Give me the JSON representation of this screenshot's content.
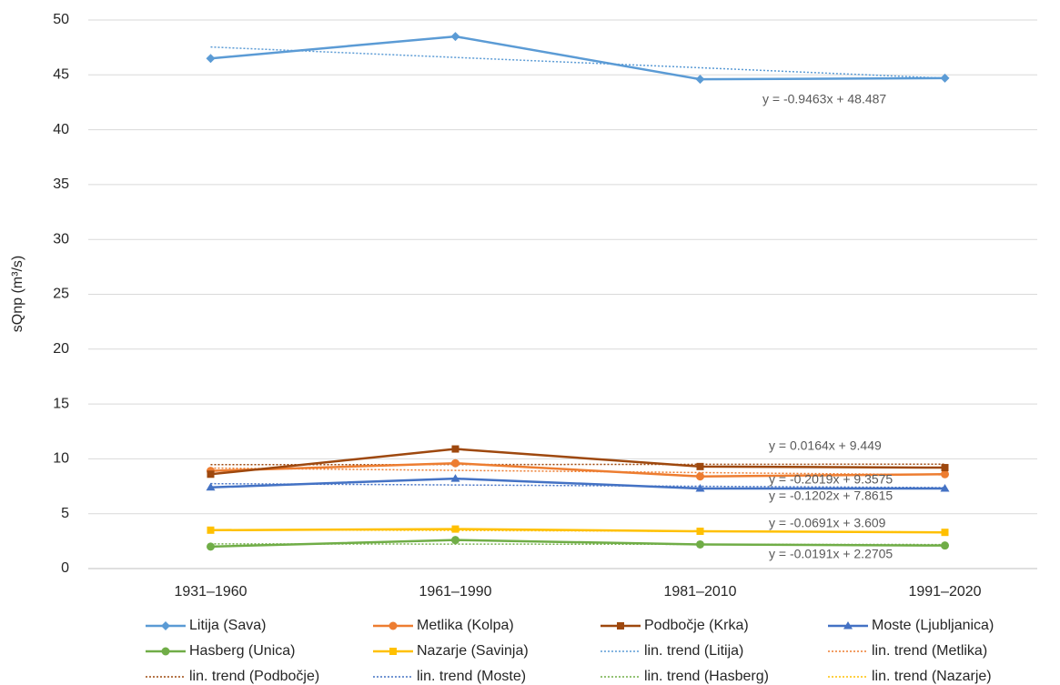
{
  "chart_data": {
    "type": "line",
    "y_label": "sQnp (m³/s)",
    "categories": [
      "1931–1960",
      "1961–1990",
      "1981–2010",
      "1991–2020"
    ],
    "ylim": [
      0,
      50
    ],
    "yticks": [
      0,
      5,
      10,
      15,
      20,
      25,
      30,
      35,
      40,
      45,
      50
    ],
    "grid": true,
    "legend": "bottom",
    "series": [
      {
        "name": "Litija (Sava)",
        "color": "#5b9bd5",
        "marker": "diamond",
        "values": [
          46.5,
          48.5,
          44.6,
          44.7
        ]
      },
      {
        "name": "Metlika (Kolpa)",
        "color": "#ed7d31",
        "marker": "circle",
        "values": [
          8.9,
          9.6,
          8.4,
          8.6
        ]
      },
      {
        "name": "Podbočje (Krka)",
        "color": "#9e480e",
        "marker": "square",
        "values": [
          8.6,
          10.9,
          9.3,
          9.2
        ]
      },
      {
        "name": "Moste (Ljubljanica)",
        "color": "#4472c4",
        "marker": "triangle",
        "values": [
          7.4,
          8.2,
          7.3,
          7.3
        ]
      },
      {
        "name": "Hasberg (Unica)",
        "color": "#70ad47",
        "marker": "circle",
        "values": [
          2.0,
          2.6,
          2.2,
          2.1
        ]
      },
      {
        "name": "Nazarje (Savinja)",
        "color": "#ffc000",
        "marker": "square",
        "values": [
          3.5,
          3.6,
          3.4,
          3.3
        ]
      },
      {
        "name": "lin. trend (Litija)",
        "color": "#5b9bd5",
        "dotted": true,
        "values": [
          47.54,
          46.59,
          45.65,
          44.7
        ]
      },
      {
        "name": "lin. trend (Metlika)",
        "color": "#ed7d31",
        "dotted": true,
        "values": [
          9.16,
          8.95,
          8.75,
          8.55
        ]
      },
      {
        "name": "lin. trend (Podbočje)",
        "color": "#9e480e",
        "dotted": true,
        "values": [
          9.47,
          9.48,
          9.5,
          9.52
        ]
      },
      {
        "name": "lin. trend (Moste)",
        "color": "#4472c4",
        "dotted": true,
        "values": [
          7.74,
          7.62,
          7.5,
          7.38
        ]
      },
      {
        "name": "lin. trend (Hasberg)",
        "color": "#70ad47",
        "dotted": true,
        "values": [
          2.25,
          2.23,
          2.21,
          2.19
        ]
      },
      {
        "name": "lin. trend (Nazarje)",
        "color": "#ffc000",
        "dotted": true,
        "values": [
          3.54,
          3.47,
          3.4,
          3.33
        ]
      }
    ],
    "annotations": [
      "y = -0.9463x + 48.487",
      "y = 0.0164x + 9.449",
      "y = -0.2019x + 9.3575",
      "y = -0.1202x + 7.8615",
      "y = -0.0691x + 3.609",
      "y = -0.0191x + 2.2705"
    ]
  }
}
